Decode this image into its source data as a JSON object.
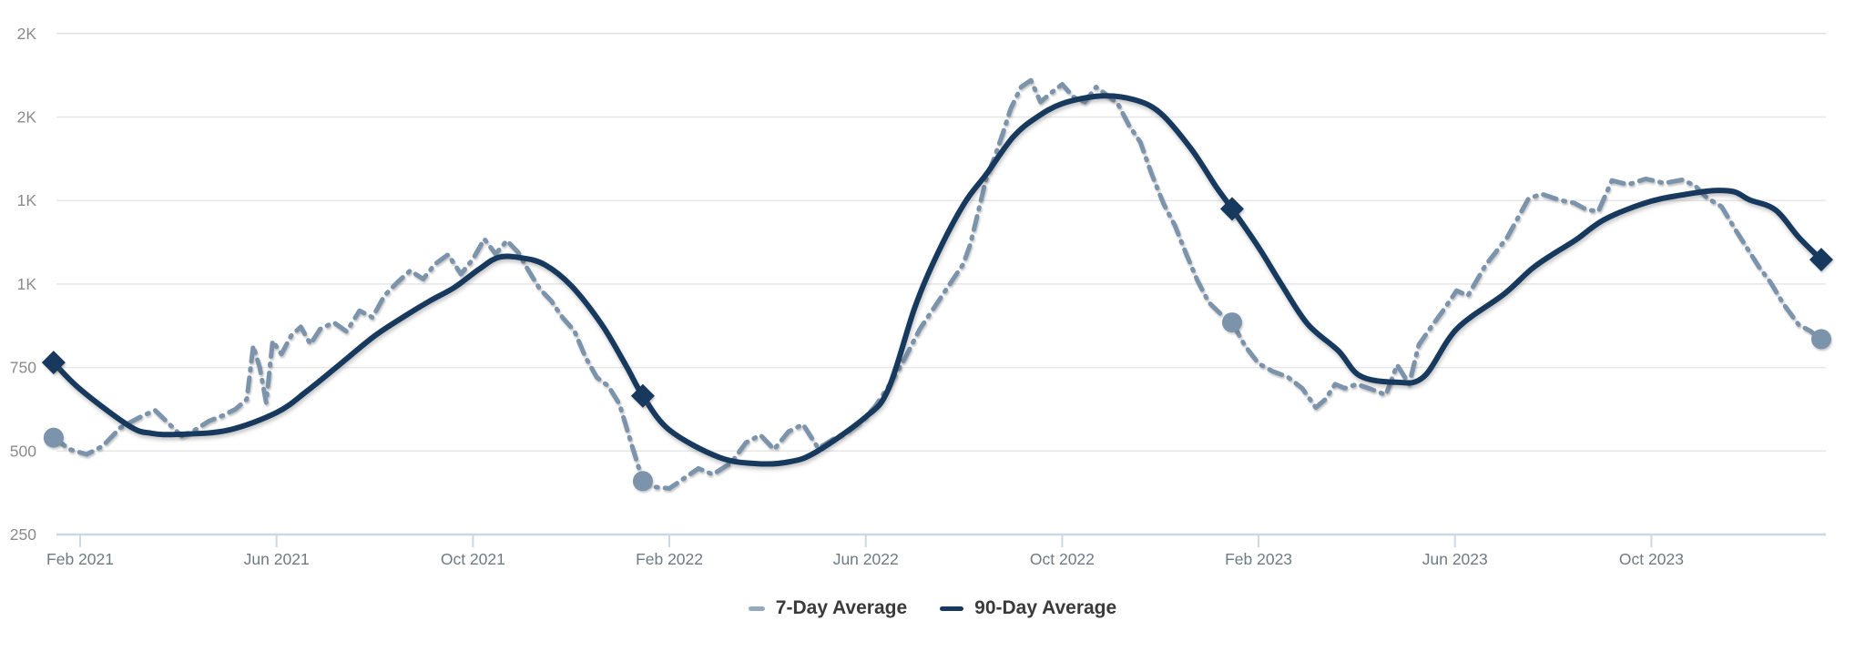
{
  "legend": {
    "items": [
      {
        "label": "7-Day Average"
      },
      {
        "label": "90-Day Average"
      }
    ]
  },
  "colors": {
    "series7": "#7b93ab",
    "series90": "#17395d",
    "grid": "#e7e7e7",
    "axis": "#ccd8e3",
    "y_label": "#8b8b8b",
    "x_label": "#6e7a84",
    "legend_text": "#3a3a3a"
  },
  "chart_data": {
    "type": "line",
    "title": "",
    "xlabel": "",
    "ylabel": "",
    "grid": "horizontal",
    "legend_position": "bottom-center",
    "y_axis": {
      "range": [
        250,
        1750
      ],
      "ticks": [
        {
          "value": 1750,
          "label": "2K"
        },
        {
          "value": 1500,
          "label": "2K"
        },
        {
          "value": 1250,
          "label": "1K"
        },
        {
          "value": 1000,
          "label": "1K"
        },
        {
          "value": 750,
          "label": "750"
        },
        {
          "value": 500,
          "label": "500"
        },
        {
          "value": 250,
          "label": "250"
        }
      ]
    },
    "x_axis": {
      "ticks": [
        {
          "date": "2021-02-01",
          "label": "Feb 2021"
        },
        {
          "date": "2021-06-01",
          "label": "Jun 2021"
        },
        {
          "date": "2021-10-01",
          "label": "Oct 2021"
        },
        {
          "date": "2022-02-01",
          "label": "Feb 2022"
        },
        {
          "date": "2022-06-01",
          "label": "Jun 2022"
        },
        {
          "date": "2022-10-01",
          "label": "Oct 2022"
        },
        {
          "date": "2023-02-01",
          "label": "Feb 2023"
        },
        {
          "date": "2023-06-01",
          "label": "Jun 2023"
        },
        {
          "date": "2023-10-01",
          "label": "Oct 2023"
        }
      ]
    },
    "series": [
      {
        "name": "7-Day Average",
        "style": "dashed",
        "color": "#7b93ab",
        "points": [
          [
            "2021-01-15",
            540
          ],
          [
            "2021-01-25",
            505
          ],
          [
            "2021-02-05",
            490
          ],
          [
            "2021-02-15",
            515
          ],
          [
            "2021-02-26",
            570
          ],
          [
            "2021-03-09",
            605
          ],
          [
            "2021-03-17",
            622
          ],
          [
            "2021-03-26",
            580
          ],
          [
            "2021-04-03",
            545
          ],
          [
            "2021-04-11",
            562
          ],
          [
            "2021-04-20",
            590
          ],
          [
            "2021-04-28",
            605
          ],
          [
            "2021-05-06",
            625
          ],
          [
            "2021-05-13",
            655
          ],
          [
            "2021-05-17",
            815
          ],
          [
            "2021-05-21",
            750
          ],
          [
            "2021-05-25",
            645
          ],
          [
            "2021-05-29",
            830
          ],
          [
            "2021-06-04",
            790
          ],
          [
            "2021-06-10",
            845
          ],
          [
            "2021-06-16",
            872
          ],
          [
            "2021-06-22",
            820
          ],
          [
            "2021-06-28",
            865
          ],
          [
            "2021-07-06",
            885
          ],
          [
            "2021-07-14",
            858
          ],
          [
            "2021-07-22",
            920
          ],
          [
            "2021-07-30",
            900
          ],
          [
            "2021-08-07",
            965
          ],
          [
            "2021-08-15",
            1005
          ],
          [
            "2021-08-23",
            1040
          ],
          [
            "2021-08-31",
            1015
          ],
          [
            "2021-09-08",
            1060
          ],
          [
            "2021-09-16",
            1088
          ],
          [
            "2021-09-24",
            1030
          ],
          [
            "2021-10-01",
            1075
          ],
          [
            "2021-10-08",
            1135
          ],
          [
            "2021-10-15",
            1090
          ],
          [
            "2021-10-22",
            1130
          ],
          [
            "2021-10-29",
            1095
          ],
          [
            "2021-11-05",
            1040
          ],
          [
            "2021-11-12",
            985
          ],
          [
            "2021-11-19",
            950
          ],
          [
            "2021-11-26",
            900
          ],
          [
            "2021-12-03",
            860
          ],
          [
            "2021-12-10",
            780
          ],
          [
            "2021-12-17",
            720
          ],
          [
            "2021-12-24",
            695
          ],
          [
            "2021-12-31",
            640
          ],
          [
            "2022-01-08",
            520
          ],
          [
            "2022-01-15",
            410
          ],
          [
            "2022-01-23",
            392
          ],
          [
            "2022-02-01",
            388
          ],
          [
            "2022-02-10",
            418
          ],
          [
            "2022-02-19",
            448
          ],
          [
            "2022-02-28",
            430
          ],
          [
            "2022-03-09",
            465
          ],
          [
            "2022-03-18",
            525
          ],
          [
            "2022-03-27",
            548
          ],
          [
            "2022-04-05",
            505
          ],
          [
            "2022-04-14",
            558
          ],
          [
            "2022-04-23",
            580
          ],
          [
            "2022-05-02",
            508
          ],
          [
            "2022-05-11",
            535
          ],
          [
            "2022-05-20",
            558
          ],
          [
            "2022-05-29",
            590
          ],
          [
            "2022-06-07",
            635
          ],
          [
            "2022-06-16",
            700
          ],
          [
            "2022-06-25",
            775
          ],
          [
            "2022-07-04",
            865
          ],
          [
            "2022-07-13",
            930
          ],
          [
            "2022-07-22",
            995
          ],
          [
            "2022-07-31",
            1060
          ],
          [
            "2022-08-05",
            1120
          ],
          [
            "2022-08-10",
            1220
          ],
          [
            "2022-08-15",
            1320
          ],
          [
            "2022-08-20",
            1380
          ],
          [
            "2022-08-25",
            1450
          ],
          [
            "2022-08-30",
            1525
          ],
          [
            "2022-09-06",
            1590
          ],
          [
            "2022-09-12",
            1610
          ],
          [
            "2022-09-18",
            1545
          ],
          [
            "2022-09-24",
            1570
          ],
          [
            "2022-10-01",
            1598
          ],
          [
            "2022-10-08",
            1560
          ],
          [
            "2022-10-15",
            1545
          ],
          [
            "2022-10-22",
            1590
          ],
          [
            "2022-10-29",
            1565
          ],
          [
            "2022-11-05",
            1540
          ],
          [
            "2022-11-12",
            1475
          ],
          [
            "2022-11-19",
            1425
          ],
          [
            "2022-11-26",
            1330
          ],
          [
            "2022-12-03",
            1240
          ],
          [
            "2022-12-10",
            1175
          ],
          [
            "2022-12-17",
            1090
          ],
          [
            "2022-12-24",
            1010
          ],
          [
            "2022-12-31",
            945
          ],
          [
            "2023-01-08",
            910
          ],
          [
            "2023-01-15",
            885
          ],
          [
            "2023-01-23",
            815
          ],
          [
            "2023-02-01",
            762
          ],
          [
            "2023-02-10",
            738
          ],
          [
            "2023-02-19",
            722
          ],
          [
            "2023-02-28",
            688
          ],
          [
            "2023-03-06",
            630
          ],
          [
            "2023-03-12",
            655
          ],
          [
            "2023-03-18",
            700
          ],
          [
            "2023-03-24",
            688
          ],
          [
            "2023-04-01",
            700
          ],
          [
            "2023-04-10",
            685
          ],
          [
            "2023-04-19",
            668
          ],
          [
            "2023-04-26",
            758
          ],
          [
            "2023-05-03",
            700
          ],
          [
            "2023-05-09",
            818
          ],
          [
            "2023-05-16",
            867
          ],
          [
            "2023-05-24",
            920
          ],
          [
            "2023-06-02",
            980
          ],
          [
            "2023-06-09",
            965
          ],
          [
            "2023-06-20",
            1057
          ],
          [
            "2023-06-28",
            1106
          ],
          [
            "2023-07-03",
            1140
          ],
          [
            "2023-07-16",
            1255
          ],
          [
            "2023-07-24",
            1270
          ],
          [
            "2023-08-06",
            1250
          ],
          [
            "2023-08-14",
            1243
          ],
          [
            "2023-08-22",
            1222
          ],
          [
            "2023-08-29",
            1218
          ],
          [
            "2023-09-07",
            1310
          ],
          [
            "2023-09-17",
            1298
          ],
          [
            "2023-09-28",
            1315
          ],
          [
            "2023-10-09",
            1302
          ],
          [
            "2023-10-20",
            1312
          ],
          [
            "2023-10-28",
            1295
          ],
          [
            "2023-11-05",
            1258
          ],
          [
            "2023-11-14",
            1232
          ],
          [
            "2023-11-23",
            1160
          ],
          [
            "2023-11-29",
            1114
          ],
          [
            "2023-12-07",
            1050
          ],
          [
            "2023-12-14",
            1005
          ],
          [
            "2023-12-22",
            940
          ],
          [
            "2024-01-01",
            878
          ],
          [
            "2024-01-08",
            860
          ],
          [
            "2024-01-15",
            835
          ]
        ],
        "markers": [
          {
            "shape": "circle",
            "date": "2021-01-15",
            "value": 540
          },
          {
            "shape": "circle",
            "date": "2022-01-15",
            "value": 410
          },
          {
            "shape": "circle",
            "date": "2023-01-15",
            "value": 885
          },
          {
            "shape": "circle",
            "date": "2024-01-15",
            "value": 835
          }
        ]
      },
      {
        "name": "90-Day Average",
        "style": "solid",
        "color": "#17395d",
        "points": [
          [
            "2021-01-15",
            765
          ],
          [
            "2021-02-01",
            685
          ],
          [
            "2021-03-01",
            575
          ],
          [
            "2021-03-15",
            553
          ],
          [
            "2021-04-01",
            550
          ],
          [
            "2021-05-01",
            562
          ],
          [
            "2021-06-01",
            615
          ],
          [
            "2021-06-20",
            680
          ],
          [
            "2021-07-10",
            760
          ],
          [
            "2021-08-01",
            845
          ],
          [
            "2021-08-20",
            905
          ],
          [
            "2021-09-05",
            950
          ],
          [
            "2021-09-20",
            990
          ],
          [
            "2021-10-05",
            1045
          ],
          [
            "2021-10-17",
            1080
          ],
          [
            "2021-11-01",
            1078
          ],
          [
            "2021-11-15",
            1058
          ],
          [
            "2021-12-01",
            995
          ],
          [
            "2021-12-20",
            878
          ],
          [
            "2022-01-05",
            752
          ],
          [
            "2022-01-15",
            665
          ],
          [
            "2022-02-01",
            563
          ],
          [
            "2022-03-01",
            482
          ],
          [
            "2022-03-25",
            462
          ],
          [
            "2022-04-15",
            468
          ],
          [
            "2022-05-01",
            498
          ],
          [
            "2022-06-01",
            602
          ],
          [
            "2022-06-15",
            685
          ],
          [
            "2022-07-01",
            930
          ],
          [
            "2022-07-15",
            1090
          ],
          [
            "2022-08-01",
            1240
          ],
          [
            "2022-08-15",
            1330
          ],
          [
            "2022-09-01",
            1440
          ],
          [
            "2022-09-15",
            1497
          ],
          [
            "2022-10-01",
            1540
          ],
          [
            "2022-10-25",
            1563
          ],
          [
            "2022-11-15",
            1552
          ],
          [
            "2022-12-01",
            1512
          ],
          [
            "2022-12-20",
            1405
          ],
          [
            "2023-01-05",
            1292
          ],
          [
            "2023-01-15",
            1225
          ],
          [
            "2023-02-01",
            1110
          ],
          [
            "2023-02-15",
            1000
          ],
          [
            "2023-03-01",
            880
          ],
          [
            "2023-03-20",
            800
          ],
          [
            "2023-04-03",
            725
          ],
          [
            "2023-04-25",
            706
          ],
          [
            "2023-05-12",
            722
          ],
          [
            "2023-06-02",
            865
          ],
          [
            "2023-07-01",
            970
          ],
          [
            "2023-07-18",
            1045
          ],
          [
            "2023-08-01",
            1090
          ],
          [
            "2023-08-15",
            1132
          ],
          [
            "2023-09-03",
            1195
          ],
          [
            "2023-10-01",
            1248
          ],
          [
            "2023-10-27",
            1272
          ],
          [
            "2023-11-10",
            1280
          ],
          [
            "2023-11-22",
            1276
          ],
          [
            "2023-12-01",
            1252
          ],
          [
            "2023-12-17",
            1222
          ],
          [
            "2024-01-01",
            1140
          ],
          [
            "2024-01-15",
            1073
          ]
        ],
        "markers": [
          {
            "shape": "diamond",
            "date": "2021-01-15",
            "value": 765
          },
          {
            "shape": "diamond",
            "date": "2022-01-15",
            "value": 665
          },
          {
            "shape": "diamond",
            "date": "2023-01-15",
            "value": 1225
          },
          {
            "shape": "diamond",
            "date": "2024-01-15",
            "value": 1073
          }
        ]
      }
    ]
  }
}
